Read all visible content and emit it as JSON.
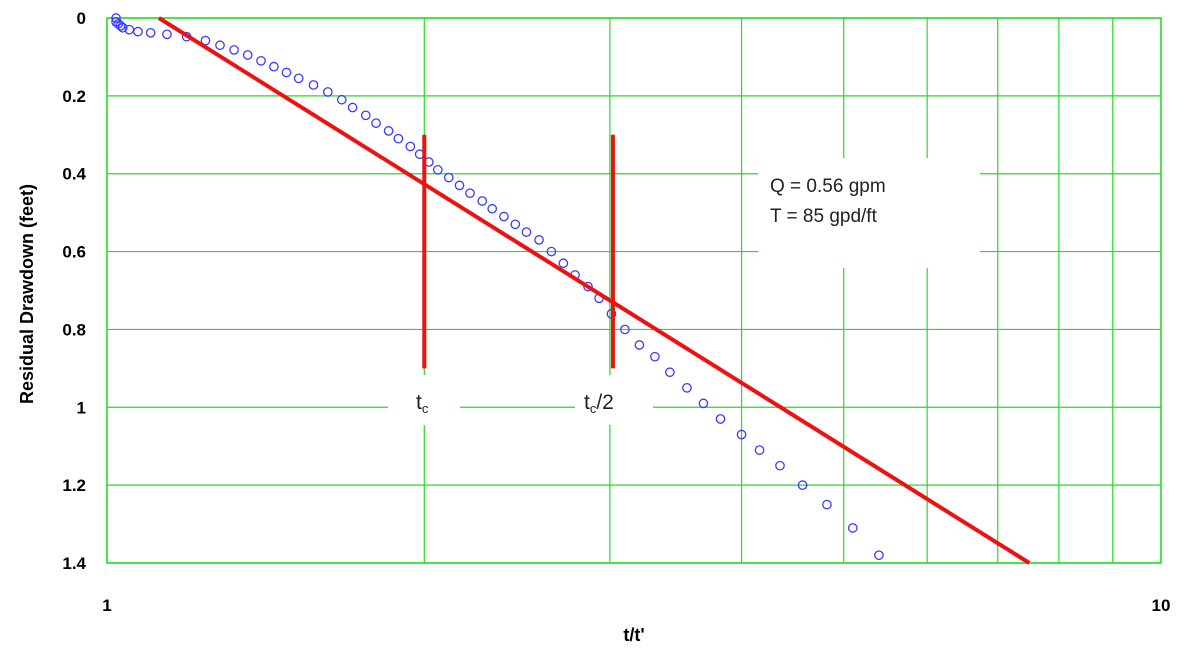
{
  "chart_data": {
    "type": "scatter",
    "xlabel": "t/t'",
    "ylabel": "Residual Drawdown (feet)",
    "xscale": "log",
    "xlim": [
      1,
      10
    ],
    "ylim": [
      0,
      1.4
    ],
    "y_inverted": true,
    "grid": true,
    "x_tick_labels": [
      "1",
      "10"
    ],
    "y_ticks": [
      0,
      0.2,
      0.4,
      0.6,
      0.8,
      1,
      1.2,
      1.4
    ],
    "y_tick_labels": [
      "0",
      "0.2",
      "0.4",
      "0.6",
      "0.8",
      "1",
      "1.2",
      "1.4"
    ],
    "annotations": {
      "q_label": "Q = 0.56 gpm",
      "t_label": "T = 85 gpd/ft",
      "tc_main": "t",
      "tc_sub": "c",
      "tc2_main": "t",
      "tc2_sub": "c",
      "tc2_tail": "/2"
    },
    "markers": [
      {
        "x": 2.0,
        "y_from": 0.3,
        "y_to": 0.9
      },
      {
        "x": 3.02,
        "y_from": 0.3,
        "y_to": 0.9
      }
    ],
    "fit_line": {
      "x": [
        1.12,
        7.5
      ],
      "y": [
        0,
        1.4
      ]
    },
    "series": [
      {
        "marker": "open-circle",
        "color": "#3a3aff",
        "points": [
          [
            1.02,
            0.0
          ],
          [
            1.02,
            0.01
          ],
          [
            1.025,
            0.015
          ],
          [
            1.03,
            0.02
          ],
          [
            1.035,
            0.025
          ],
          [
            1.05,
            0.03
          ],
          [
            1.07,
            0.035
          ],
          [
            1.1,
            0.038
          ],
          [
            1.14,
            0.042
          ],
          [
            1.19,
            0.048
          ],
          [
            1.24,
            0.058
          ],
          [
            1.28,
            0.07
          ],
          [
            1.32,
            0.082
          ],
          [
            1.36,
            0.095
          ],
          [
            1.4,
            0.11
          ],
          [
            1.44,
            0.125
          ],
          [
            1.48,
            0.14
          ],
          [
            1.52,
            0.155
          ],
          [
            1.57,
            0.172
          ],
          [
            1.62,
            0.19
          ],
          [
            1.67,
            0.21
          ],
          [
            1.71,
            0.23
          ],
          [
            1.76,
            0.25
          ],
          [
            1.8,
            0.27
          ],
          [
            1.85,
            0.29
          ],
          [
            1.89,
            0.31
          ],
          [
            1.94,
            0.33
          ],
          [
            1.98,
            0.35
          ],
          [
            2.02,
            0.37
          ],
          [
            2.06,
            0.39
          ],
          [
            2.11,
            0.41
          ],
          [
            2.16,
            0.43
          ],
          [
            2.21,
            0.45
          ],
          [
            2.27,
            0.47
          ],
          [
            2.32,
            0.49
          ],
          [
            2.38,
            0.51
          ],
          [
            2.44,
            0.53
          ],
          [
            2.5,
            0.55
          ],
          [
            2.57,
            0.57
          ],
          [
            2.64,
            0.6
          ],
          [
            2.71,
            0.63
          ],
          [
            2.78,
            0.66
          ],
          [
            2.86,
            0.69
          ],
          [
            2.93,
            0.72
          ],
          [
            3.01,
            0.76
          ],
          [
            3.1,
            0.8
          ],
          [
            3.2,
            0.84
          ],
          [
            3.31,
            0.87
          ],
          [
            3.42,
            0.91
          ],
          [
            3.55,
            0.95
          ],
          [
            3.68,
            0.99
          ],
          [
            3.82,
            1.03
          ],
          [
            4.0,
            1.07
          ],
          [
            4.16,
            1.11
          ],
          [
            4.35,
            1.15
          ],
          [
            4.57,
            1.2
          ],
          [
            4.82,
            1.25
          ],
          [
            5.1,
            1.31
          ],
          [
            5.4,
            1.38
          ]
        ]
      }
    ]
  }
}
